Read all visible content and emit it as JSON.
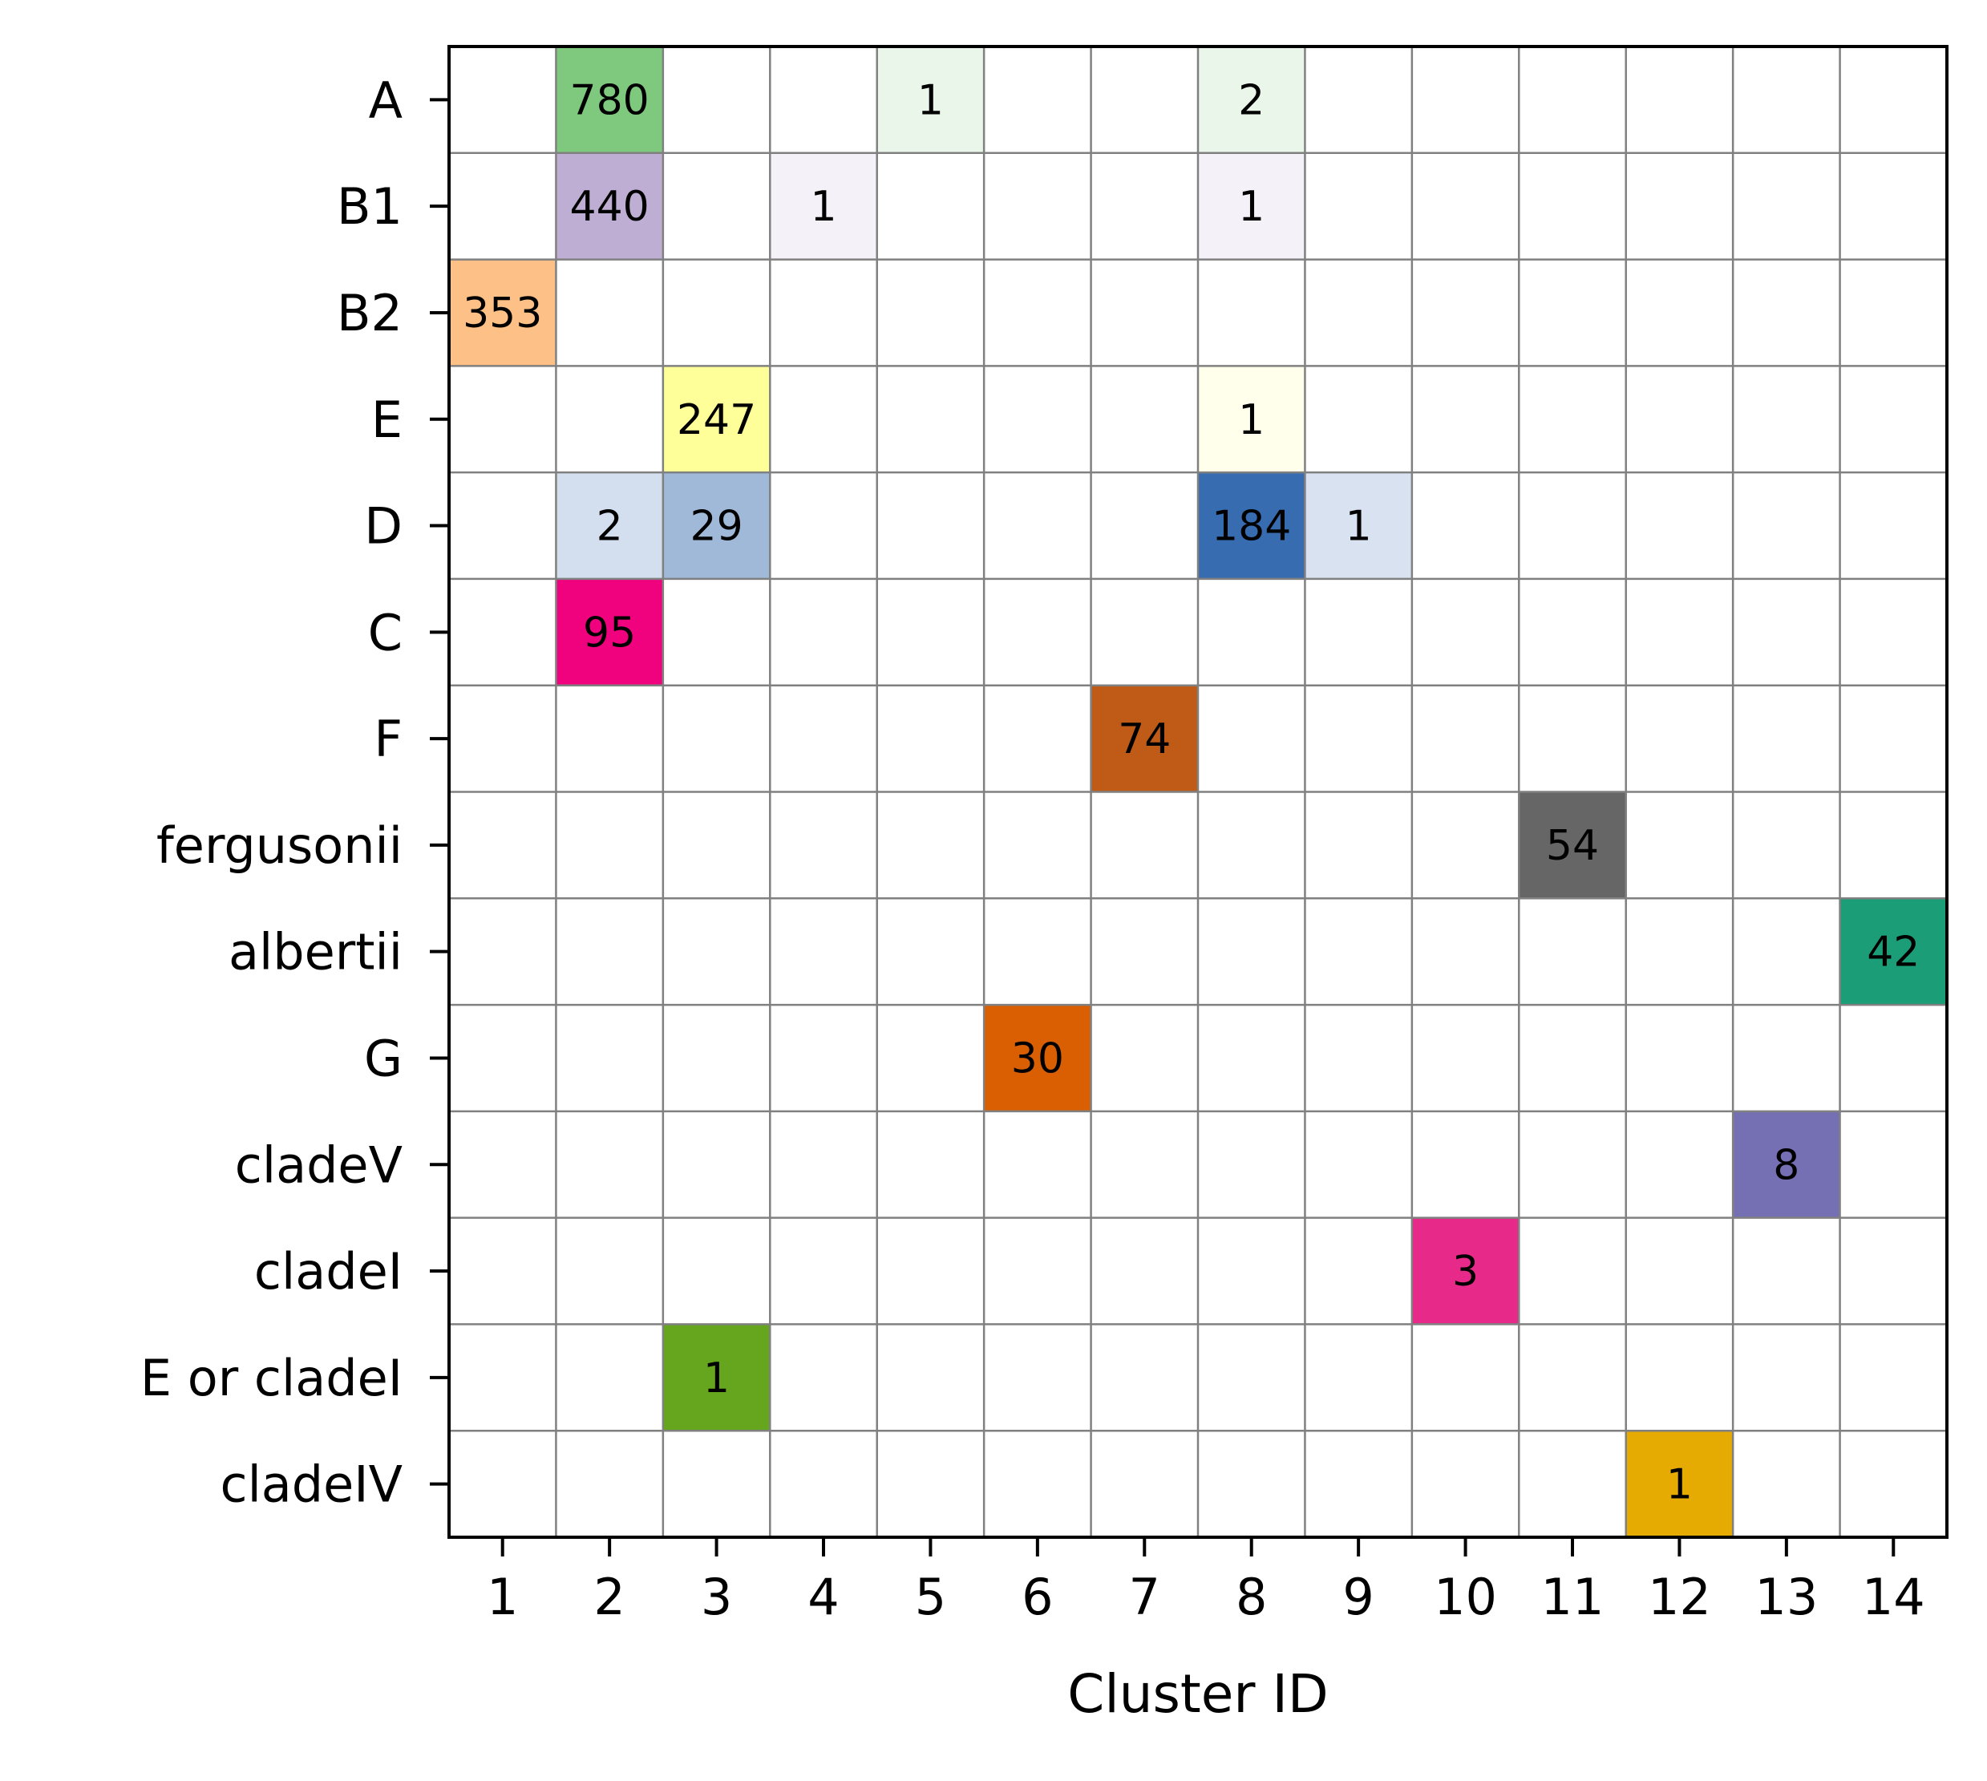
{
  "chart_data": {
    "type": "heatmap",
    "xlabel": "Cluster ID",
    "ylabel": "",
    "x_categories": [
      "1",
      "2",
      "3",
      "4",
      "5",
      "6",
      "7",
      "8",
      "9",
      "10",
      "11",
      "12",
      "13",
      "14"
    ],
    "y_categories": [
      "A",
      "B1",
      "B2",
      "E",
      "D",
      "C",
      "F",
      "fergusonii",
      "albertii",
      "G",
      "cladeV",
      "cladeI",
      "E or cladeI",
      "cladeIV"
    ],
    "grid": true,
    "rows": [
      {
        "label": "A",
        "color": "#7fc97f",
        "cells": [
          {
            "x": "2",
            "value": 780
          },
          {
            "x": "5",
            "value": 1
          },
          {
            "x": "8",
            "value": 2
          }
        ]
      },
      {
        "label": "B1",
        "color": "#beaed4",
        "cells": [
          {
            "x": "2",
            "value": 440
          },
          {
            "x": "4",
            "value": 1
          },
          {
            "x": "8",
            "value": 1
          }
        ]
      },
      {
        "label": "B2",
        "color": "#fdc086",
        "cells": [
          {
            "x": "1",
            "value": 353
          }
        ]
      },
      {
        "label": "E",
        "color": "#ffff99",
        "cells": [
          {
            "x": "3",
            "value": 247
          },
          {
            "x": "8",
            "value": 1
          }
        ]
      },
      {
        "label": "D",
        "color": "#386cb0",
        "cells": [
          {
            "x": "2",
            "value": 2
          },
          {
            "x": "3",
            "value": 29
          },
          {
            "x": "8",
            "value": 184
          },
          {
            "x": "9",
            "value": 1
          }
        ]
      },
      {
        "label": "C",
        "color": "#f0027f",
        "cells": [
          {
            "x": "2",
            "value": 95
          }
        ]
      },
      {
        "label": "F",
        "color": "#bf5b17",
        "cells": [
          {
            "x": "7",
            "value": 74
          }
        ]
      },
      {
        "label": "fergusonii",
        "color": "#666666",
        "cells": [
          {
            "x": "11",
            "value": 54
          }
        ]
      },
      {
        "label": "albertii",
        "color": "#1b9e77",
        "cells": [
          {
            "x": "14",
            "value": 42
          }
        ]
      },
      {
        "label": "G",
        "color": "#d95f02",
        "cells": [
          {
            "x": "6",
            "value": 30
          }
        ]
      },
      {
        "label": "cladeV",
        "color": "#7570b3",
        "cells": [
          {
            "x": "13",
            "value": 8
          }
        ]
      },
      {
        "label": "cladeI",
        "color": "#e7298a",
        "cells": [
          {
            "x": "10",
            "value": 3
          }
        ]
      },
      {
        "label": "E or cladeI",
        "color": "#66a61e",
        "cells": [
          {
            "x": "3",
            "value": 1
          }
        ]
      },
      {
        "label": "cladeIV",
        "color": "#e6ab02",
        "cells": [
          {
            "x": "12",
            "value": 1
          }
        ]
      }
    ]
  }
}
